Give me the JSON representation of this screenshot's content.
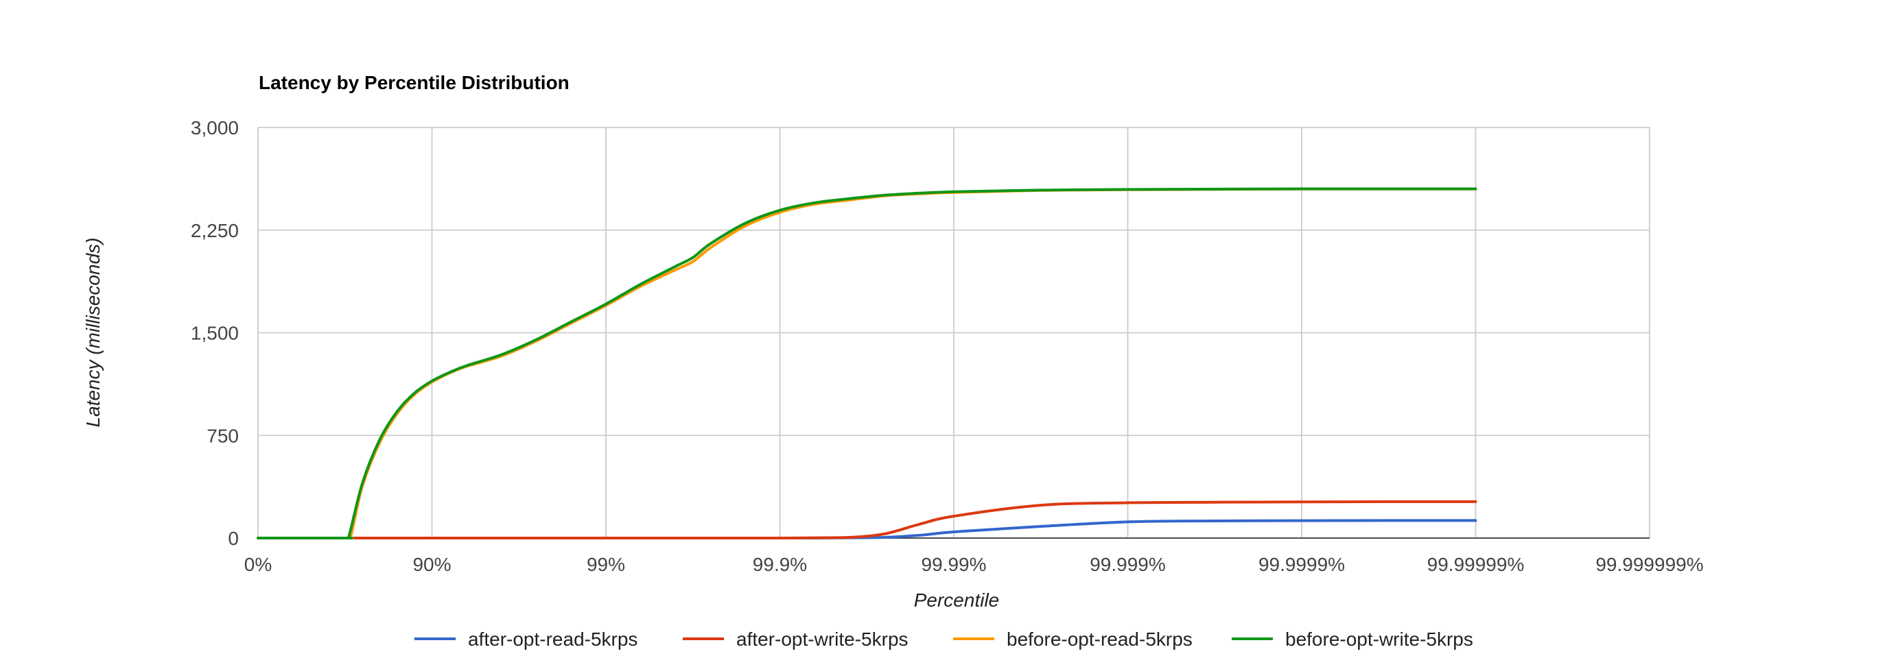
{
  "chart_data": {
    "type": "line",
    "title": "Latency by Percentile Distribution",
    "xlabel": "Percentile",
    "ylabel": "Latency (milliseconds)",
    "x_scale": "percentile-nines",
    "x_ticks": [
      "0%",
      "90%",
      "99%",
      "99.9%",
      "99.99%",
      "99.999%",
      "99.9999%",
      "99.99999%",
      "99.999999%"
    ],
    "y_ticks": [
      "0",
      "750",
      "1,500",
      "2,250",
      "3,000"
    ],
    "ylim": [
      0,
      3000
    ],
    "grid": true,
    "legend_position": "bottom",
    "series": [
      {
        "name": "after-opt-read-5krps",
        "color": "#3366cc",
        "nines": [
          0,
          0.5,
          1,
          1.5,
          2,
          2.5,
          2.7,
          2.8,
          2.9,
          3,
          3.2,
          3.4,
          3.6,
          3.8,
          4,
          4.5,
          5,
          5.5,
          6,
          6.5,
          7
        ],
        "values": [
          0,
          0,
          0,
          0,
          0,
          0,
          0,
          0,
          0,
          0,
          0,
          2,
          5,
          20,
          45,
          85,
          118,
          125,
          127,
          128,
          128
        ]
      },
      {
        "name": "after-opt-write-5krps",
        "color": "#dc3912",
        "nines": [
          0,
          0.5,
          1,
          1.5,
          2,
          2.5,
          2.7,
          2.8,
          2.9,
          3,
          3.2,
          3.4,
          3.6,
          3.8,
          4,
          4.5,
          5,
          5.5,
          6,
          6.5,
          7
        ],
        "values": [
          0,
          0,
          0,
          0,
          0,
          0,
          0,
          0,
          0,
          0,
          2,
          5,
          30,
          100,
          160,
          240,
          258,
          262,
          264,
          266,
          266
        ]
      },
      {
        "name": "before-opt-read-5krps",
        "color": "#ff9900",
        "nines": [
          0,
          0.5,
          0.53,
          0.6,
          0.7,
          0.8,
          0.9,
          1,
          1.1,
          1.2,
          1.4,
          1.6,
          1.8,
          2,
          2.2,
          2.4,
          2.5,
          2.6,
          2.8,
          3,
          3.2,
          3.4,
          3.6,
          3.8,
          4,
          4.5,
          5,
          6,
          7
        ],
        "values": [
          0,
          0,
          0,
          380,
          700,
          910,
          1050,
          1140,
          1205,
          1255,
          1330,
          1440,
          1570,
          1700,
          1840,
          1960,
          2020,
          2120,
          2280,
          2380,
          2440,
          2470,
          2500,
          2515,
          2525,
          2540,
          2545,
          2550,
          2550
        ]
      },
      {
        "name": "before-opt-write-5krps",
        "color": "#109618",
        "nines": [
          0,
          0.5,
          0.52,
          0.6,
          0.7,
          0.8,
          0.9,
          1,
          1.1,
          1.2,
          1.4,
          1.6,
          1.8,
          2,
          2.2,
          2.4,
          2.5,
          2.6,
          2.8,
          3,
          3.2,
          3.4,
          3.6,
          3.8,
          4,
          4.5,
          5,
          6,
          7
        ],
        "values": [
          0,
          0,
          0,
          400,
          720,
          925,
          1060,
          1148,
          1210,
          1260,
          1340,
          1450,
          1580,
          1710,
          1855,
          1985,
          2050,
          2150,
          2300,
          2395,
          2450,
          2480,
          2505,
          2520,
          2530,
          2542,
          2547,
          2552,
          2552
        ]
      }
    ]
  }
}
